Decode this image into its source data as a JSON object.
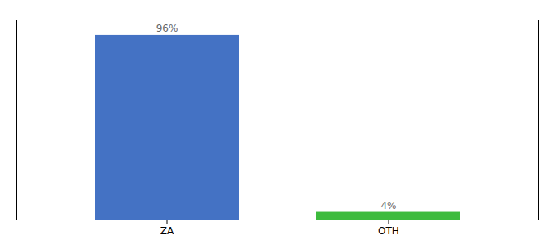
{
  "chart_data": {
    "type": "bar",
    "categories": [
      "ZA",
      "OTH"
    ],
    "values": [
      96,
      4
    ],
    "value_labels": [
      "96%",
      "4%"
    ],
    "colors": [
      "#4472c4",
      "#3dbb3d"
    ],
    "ylim": [
      0,
      104
    ],
    "data_labels": true,
    "tick_labels": "x"
  }
}
